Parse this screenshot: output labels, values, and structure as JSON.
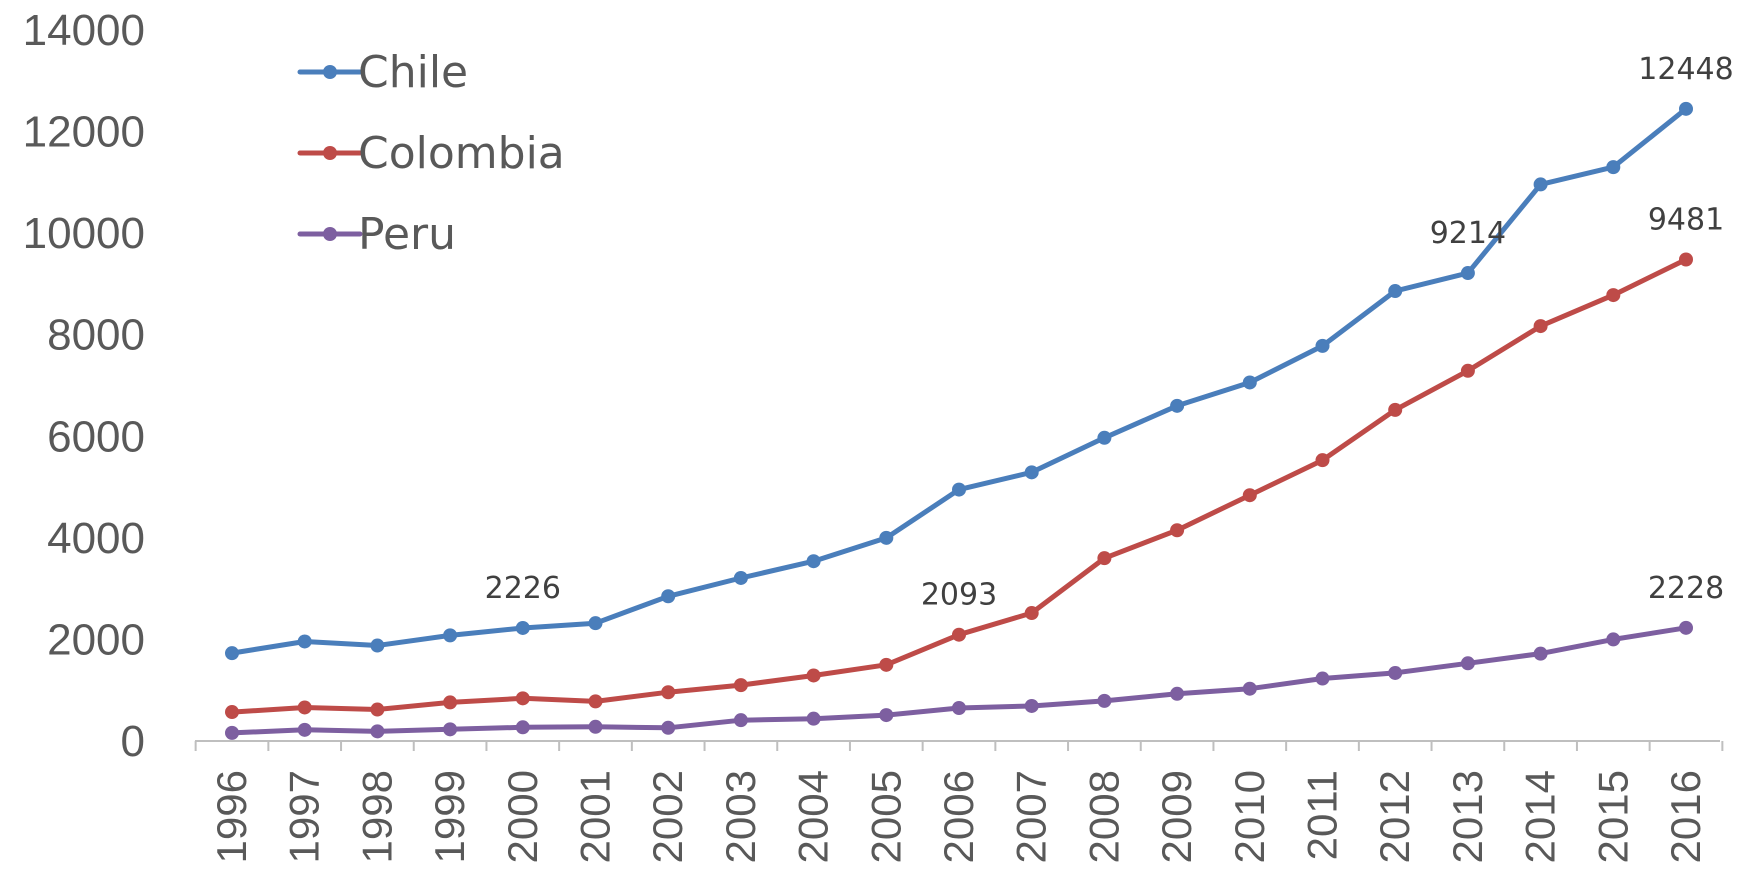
{
  "chart_data": {
    "type": "line",
    "title": "",
    "xlabel": "",
    "ylabel": "",
    "ylim": [
      0,
      14000
    ],
    "yticks": [
      0,
      2000,
      4000,
      6000,
      8000,
      10000,
      12000,
      14000
    ],
    "grid": false,
    "legend_position": "top-left",
    "categories": [
      "1996",
      "1997",
      "1998",
      "1999",
      "2000",
      "2001",
      "2002",
      "2003",
      "2004",
      "2005",
      "2006",
      "2007",
      "2008",
      "2009",
      "2010",
      "2011",
      "2012",
      "2013",
      "2014",
      "2015",
      "2016"
    ],
    "series": [
      {
        "name": "Chile",
        "color": "#4a7ebb",
        "values": [
          1730,
          1960,
          1880,
          2080,
          2226,
          2320,
          2850,
          3210,
          3540,
          4000,
          4950,
          5290,
          5970,
          6600,
          7060,
          7780,
          8860,
          9214,
          10960,
          11300,
          12448
        ]
      },
      {
        "name": "Colombia",
        "color": "#be4b48",
        "values": [
          570,
          660,
          620,
          760,
          840,
          780,
          960,
          1100,
          1290,
          1500,
          2093,
          2520,
          3600,
          4150,
          4840,
          5530,
          6520,
          7290,
          8170,
          8780,
          9481
        ]
      },
      {
        "name": "Peru",
        "color": "#7d5fa0",
        "values": [
          160,
          220,
          190,
          230,
          270,
          280,
          260,
          410,
          440,
          510,
          650,
          690,
          790,
          930,
          1030,
          1230,
          1340,
          1530,
          1720,
          2000,
          2228
        ]
      }
    ],
    "data_labels": [
      {
        "series": 0,
        "index": 4,
        "text": "2226"
      },
      {
        "series": 0,
        "index": 17,
        "text": "9214"
      },
      {
        "series": 0,
        "index": 20,
        "text": "12448"
      },
      {
        "series": 1,
        "index": 10,
        "text": "2093"
      },
      {
        "series": 1,
        "index": 20,
        "text": "9481"
      },
      {
        "series": 2,
        "index": 20,
        "text": "2228"
      }
    ]
  }
}
